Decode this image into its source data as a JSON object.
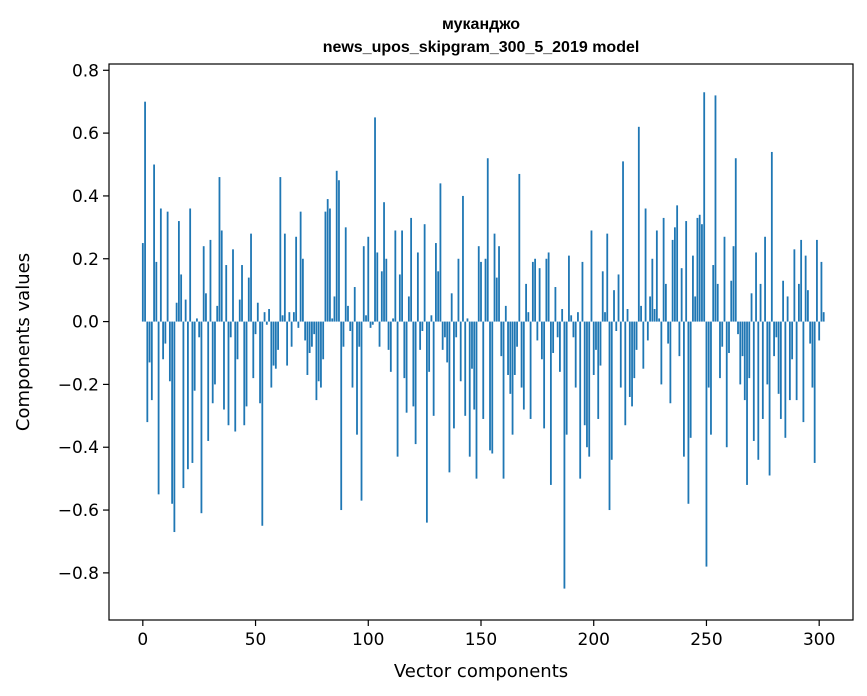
{
  "chart_data": {
    "type": "bar",
    "title": [
      "мукaнджо",
      "news_upos_skipgram_300_5_2019 model"
    ],
    "xlabel": "Vector components",
    "ylabel": "Components values",
    "xlim": [
      -15,
      315
    ],
    "ylim": [
      -0.95,
      0.82
    ],
    "xticks": [
      0,
      50,
      100,
      150,
      200,
      250,
      300
    ],
    "yticks": [
      -0.8,
      -0.6,
      -0.4,
      -0.2,
      0.0,
      0.2,
      0.4,
      0.6,
      0.8
    ],
    "ytick_labels": [
      "−0.8",
      "−0.6",
      "−0.4",
      "−0.2",
      "0.0",
      "0.2",
      "0.4",
      "0.6",
      "0.8"
    ],
    "bar_color": "#1f77b4",
    "values": [
      0.25,
      0.7,
      -0.32,
      -0.13,
      -0.25,
      0.5,
      0.19,
      -0.55,
      0.36,
      -0.12,
      -0.07,
      0.35,
      -0.19,
      -0.58,
      -0.67,
      0.06,
      0.32,
      0.15,
      -0.53,
      0.07,
      -0.47,
      0.36,
      -0.45,
      -0.22,
      0.01,
      -0.05,
      -0.61,
      0.24,
      0.09,
      -0.38,
      0.26,
      -0.26,
      -0.2,
      0.05,
      0.46,
      0.29,
      -0.28,
      0.18,
      -0.33,
      -0.05,
      0.23,
      -0.35,
      -0.12,
      0.07,
      0.18,
      -0.33,
      -0.27,
      0.14,
      0.28,
      -0.18,
      -0.04,
      0.06,
      -0.26,
      -0.65,
      0.03,
      -0.01,
      0.04,
      -0.21,
      -0.14,
      -0.15,
      -0.09,
      0.46,
      0.02,
      0.28,
      -0.14,
      0.03,
      -0.08,
      0.03,
      0.27,
      -0.02,
      0.35,
      0.2,
      -0.06,
      -0.17,
      -0.1,
      -0.08,
      -0.04,
      -0.25,
      -0.19,
      -0.21,
      -0.12,
      0.35,
      0.39,
      0.36,
      0.01,
      0.08,
      0.48,
      0.45,
      -0.6,
      -0.08,
      0.3,
      0.05,
      -0.03,
      -0.21,
      0.11,
      -0.36,
      -0.08,
      -0.57,
      0.24,
      0.02,
      0.27,
      -0.02,
      -0.01,
      0.65,
      0.22,
      -0.08,
      0.16,
      0.38,
      0.2,
      -0.09,
      -0.16,
      0.01,
      0.29,
      -0.43,
      0.15,
      0.29,
      -0.18,
      -0.29,
      0.08,
      0.33,
      -0.27,
      -0.39,
      0.22,
      -0.09,
      -0.03,
      0.31,
      -0.64,
      -0.16,
      0.02,
      -0.3,
      0.25,
      0.16,
      0.44,
      -0.09,
      -0.05,
      -0.13,
      -0.48,
      0.09,
      -0.34,
      -0.05,
      0.2,
      -0.19,
      0.4,
      -0.3,
      0.01,
      -0.43,
      -0.15,
      -0.28,
      -0.5,
      0.24,
      0.19,
      -0.31,
      0.2,
      0.52,
      -0.41,
      -0.42,
      0.28,
      0.14,
      0.24,
      -0.11,
      -0.5,
      0.05,
      -0.17,
      -0.23,
      -0.36,
      -0.17,
      -0.08,
      0.47,
      -0.21,
      -0.28,
      0.12,
      0.03,
      -0.31,
      0.19,
      0.2,
      -0.06,
      0.17,
      -0.12,
      -0.34,
      0.2,
      0.22,
      -0.52,
      -0.1,
      0.11,
      -0.05,
      -0.16,
      0.04,
      -0.85,
      -0.36,
      0.21,
      0.02,
      -0.05,
      -0.21,
      0.03,
      -0.5,
      0.19,
      -0.33,
      -0.4,
      -0.43,
      0.29,
      -0.17,
      -0.09,
      -0.31,
      -0.14,
      0.16,
      0.03,
      0.28,
      -0.6,
      -0.44,
      0.1,
      -0.03,
      0.15,
      -0.21,
      0.51,
      -0.33,
      0.04,
      -0.24,
      -0.27,
      -0.18,
      -0.09,
      0.62,
      0.05,
      -0.15,
      0.36,
      -0.06,
      0.08,
      0.2,
      0.04,
      0.29,
      0.01,
      -0.2,
      0.33,
      0.12,
      -0.07,
      -0.26,
      0.26,
      0.3,
      0.37,
      -0.11,
      0.17,
      -0.43,
      0.32,
      -0.58,
      -0.37,
      0.21,
      0.08,
      0.33,
      0.34,
      0.31,
      0.73,
      -0.78,
      -0.21,
      -0.36,
      0.18,
      0.72,
      0.12,
      -0.18,
      -0.08,
      0.27,
      -0.4,
      -0.1,
      0.13,
      0.24,
      0.52,
      -0.04,
      -0.2,
      -0.11,
      -0.25,
      -0.52,
      -0.18,
      0.09,
      -0.38,
      0.22,
      -0.44,
      0.12,
      -0.31,
      0.27,
      -0.2,
      -0.49,
      0.54,
      -0.11,
      -0.05,
      -0.23,
      -0.31,
      0.13,
      -0.37,
      0.08,
      -0.25,
      -0.12,
      0.23,
      -0.25,
      0.12,
      0.26,
      -0.32,
      0.21,
      0.1,
      -0.07,
      -0.21,
      -0.45,
      0.26,
      -0.06,
      0.19,
      0.03
    ]
  }
}
